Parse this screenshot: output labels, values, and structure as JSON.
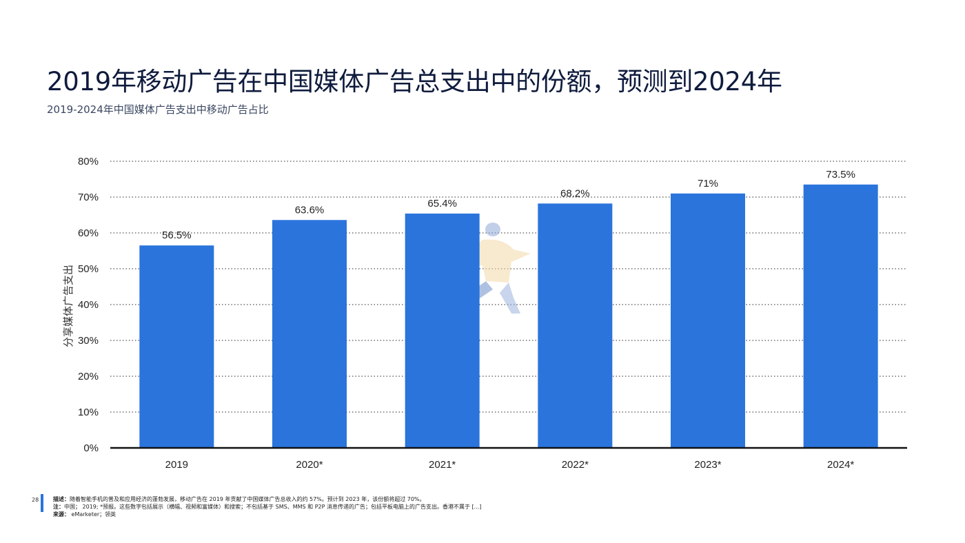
{
  "header": {
    "title": "2019年移动广告在中国媒体广告总支出中的份额，预测到2024年",
    "subtitle": "2019-2024年中国媒体广告支出中移动广告占比"
  },
  "chart_data": {
    "type": "bar",
    "categories": [
      "2019",
      "2020*",
      "2021*",
      "2022*",
      "2023*",
      "2024*"
    ],
    "values": [
      56.5,
      63.6,
      65.4,
      68.2,
      71,
      73.5
    ],
    "value_labels": [
      "56.5%",
      "63.6%",
      "65.4%",
      "68.2%",
      "71%",
      "73.5%"
    ],
    "ylabel": "分享媒体广告支出",
    "ylim": [
      0,
      80
    ],
    "yticks": [
      0,
      10,
      20,
      30,
      40,
      50,
      60,
      70,
      80
    ],
    "ytick_labels": [
      "0%",
      "10%",
      "20%",
      "30%",
      "40%",
      "50%",
      "60%",
      "70%",
      "80%"
    ],
    "grid": true,
    "bar_color": "#2a74dc"
  },
  "footer": {
    "page_number": "28",
    "description_label": "描述：",
    "description": "随着智能手机的普及和应用经济的蓬勃发展，移动广告在 2019 年贡献了中国媒体广告总收入的约 57%。预计到 2023 年，该份额将超过 70%。",
    "note_label": "注：",
    "note": "中国； 2019; *预报。这些数字包括展示（横幅、视频和富媒体）和搜索；不包括基于 SMS、MMS 和 P2P 消息传递的广告；包括平板电脑上的广告支出。香港不属于 [...]",
    "source_label": "来源：",
    "source": " eMarketer；领英"
  }
}
